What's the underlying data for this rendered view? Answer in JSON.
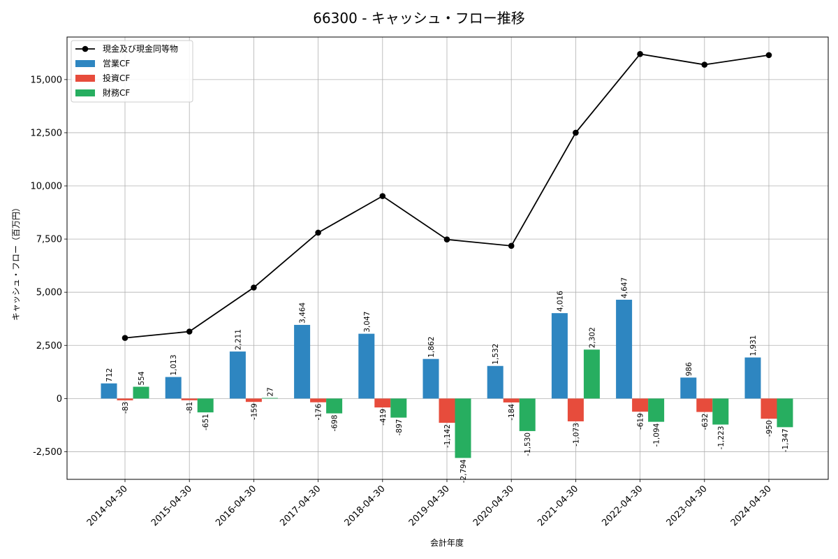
{
  "chart_data": {
    "type": "bar",
    "title": "66300 - キャッシュ・フロー推移",
    "xlabel": "会計年度",
    "ylabel": "キャッシュ・フロー（百万円）",
    "categories": [
      "2014-04-30",
      "2015-04-30",
      "2016-04-30",
      "2017-04-30",
      "2018-04-30",
      "2019-04-30",
      "2020-04-30",
      "2021-04-30",
      "2022-04-30",
      "2023-04-30",
      "2024-04-30"
    ],
    "ylim": [
      -3800,
      17000
    ],
    "yticks": [
      -2500,
      0,
      2500,
      5000,
      7500,
      10000,
      12500,
      15000
    ],
    "ytick_labels": [
      "-2,500",
      "0",
      "2,500",
      "5,000",
      "7,500",
      "10,000",
      "12,500",
      "15,000"
    ],
    "grid": true,
    "legend_position": "top-left",
    "series": [
      {
        "name": "営業CF",
        "kind": "bar",
        "color": "#2e86c1",
        "values": [
          712,
          1013,
          2211,
          3464,
          3047,
          1862,
          1532,
          4016,
          4647,
          986,
          1931
        ],
        "labels": [
          "712",
          "1,013",
          "2,211",
          "3,464",
          "3,047",
          "1,862",
          "1,532",
          "4,016",
          "4,647",
          "986",
          "1,931"
        ]
      },
      {
        "name": "投資CF",
        "kind": "bar",
        "color": "#e74c3c",
        "values": [
          -83,
          -81,
          -159,
          -176,
          -419,
          -1142,
          -184,
          -1073,
          -619,
          -632,
          -950
        ],
        "labels": [
          "-83",
          "-81",
          "-159",
          "-176",
          "-419",
          "-1,142",
          "-184",
          "-1,073",
          "-619",
          "-632",
          "-950"
        ]
      },
      {
        "name": "財務CF",
        "kind": "bar",
        "color": "#27ae60",
        "values": [
          554,
          -651,
          27,
          -698,
          -897,
          -2794,
          -1530,
          2302,
          -1094,
          -1223,
          -1347
        ],
        "labels": [
          "554",
          "-651",
          "27",
          "-698",
          "-897",
          "-2,794",
          "-1,530",
          "2,302",
          "-1,094",
          "-1,223",
          "-1,347"
        ]
      },
      {
        "name": "現金及び現金同等物",
        "kind": "line",
        "color": "#000000",
        "values": [
          2850,
          3150,
          5220,
          7800,
          9520,
          7480,
          7180,
          12500,
          16200,
          15700,
          16150
        ]
      }
    ]
  }
}
